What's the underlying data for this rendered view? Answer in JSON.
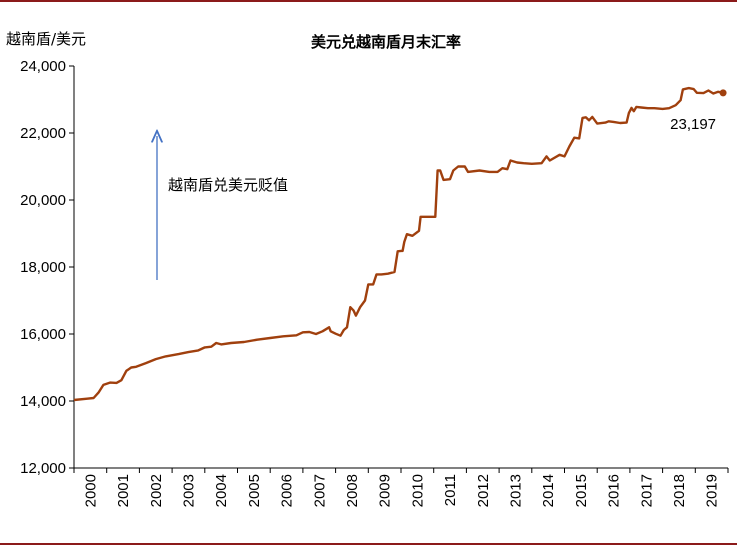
{
  "chart_data": {
    "type": "line",
    "title": "美元兑越南盾月末汇率",
    "ylabel": "越南盾/美元",
    "xlabel": "",
    "ylim": [
      12000,
      24000
    ],
    "yticks": [
      12000,
      14000,
      16000,
      18000,
      20000,
      22000,
      24000
    ],
    "ytick_labels": [
      "12,000",
      "14,000",
      "16,000",
      "18,000",
      "20,000",
      "22,000",
      "24,000"
    ],
    "xlim": [
      2000,
      2020
    ],
    "xticks": [
      2000,
      2001,
      2002,
      2003,
      2004,
      2005,
      2006,
      2007,
      2008,
      2009,
      2010,
      2011,
      2012,
      2013,
      2014,
      2015,
      2016,
      2017,
      2018,
      2019
    ],
    "xtick_labels": [
      "2000",
      "2001",
      "2002",
      "2003",
      "2004",
      "2005",
      "2006",
      "2007",
      "2008",
      "2009",
      "2010",
      "2011",
      "2012",
      "2013",
      "2014",
      "2015",
      "2016",
      "2017",
      "2018",
      "2019"
    ],
    "grid": false,
    "series": [
      {
        "color": "#a0400e",
        "points": [
          [
            2000.0,
            14030
          ],
          [
            2000.4,
            14070
          ],
          [
            2000.6,
            14090
          ],
          [
            2000.75,
            14250
          ],
          [
            2000.9,
            14480
          ],
          [
            2001.1,
            14550
          ],
          [
            2001.3,
            14540
          ],
          [
            2001.45,
            14620
          ],
          [
            2001.6,
            14900
          ],
          [
            2001.75,
            15000
          ],
          [
            2001.9,
            15020
          ],
          [
            2002.2,
            15130
          ],
          [
            2002.5,
            15250
          ],
          [
            2002.8,
            15330
          ],
          [
            2003.2,
            15400
          ],
          [
            2003.5,
            15460
          ],
          [
            2003.8,
            15510
          ],
          [
            2004.0,
            15600
          ],
          [
            2004.2,
            15620
          ],
          [
            2004.35,
            15730
          ],
          [
            2004.5,
            15690
          ],
          [
            2004.8,
            15730
          ],
          [
            2005.2,
            15760
          ],
          [
            2005.6,
            15830
          ],
          [
            2006.0,
            15880
          ],
          [
            2006.4,
            15930
          ],
          [
            2006.8,
            15960
          ],
          [
            2007.0,
            16050
          ],
          [
            2007.2,
            16060
          ],
          [
            2007.4,
            16000
          ],
          [
            2007.6,
            16080
          ],
          [
            2007.8,
            16200
          ],
          [
            2007.85,
            16080
          ],
          [
            2008.0,
            16010
          ],
          [
            2008.15,
            15950
          ],
          [
            2008.25,
            16120
          ],
          [
            2008.35,
            16200
          ],
          [
            2008.45,
            16800
          ],
          [
            2008.55,
            16700
          ],
          [
            2008.62,
            16550
          ],
          [
            2008.75,
            16800
          ],
          [
            2008.9,
            17000
          ],
          [
            2009.0,
            17480
          ],
          [
            2009.15,
            17480
          ],
          [
            2009.25,
            17780
          ],
          [
            2009.4,
            17780
          ],
          [
            2009.6,
            17800
          ],
          [
            2009.8,
            17850
          ],
          [
            2009.9,
            18470
          ],
          [
            2010.0,
            18480
          ],
          [
            2010.05,
            18480
          ],
          [
            2010.1,
            18750
          ],
          [
            2010.18,
            18980
          ],
          [
            2010.35,
            18930
          ],
          [
            2010.55,
            19080
          ],
          [
            2010.6,
            19500
          ],
          [
            2010.75,
            19500
          ],
          [
            2010.9,
            19500
          ],
          [
            2011.05,
            19500
          ],
          [
            2011.12,
            20880
          ],
          [
            2011.2,
            20880
          ],
          [
            2011.3,
            20600
          ],
          [
            2011.5,
            20620
          ],
          [
            2011.6,
            20880
          ],
          [
            2011.75,
            21000
          ],
          [
            2011.95,
            21000
          ],
          [
            2012.05,
            20840
          ],
          [
            2012.4,
            20880
          ],
          [
            2012.7,
            20840
          ],
          [
            2012.95,
            20840
          ],
          [
            2013.1,
            20950
          ],
          [
            2013.25,
            20920
          ],
          [
            2013.35,
            21180
          ],
          [
            2013.55,
            21120
          ],
          [
            2013.75,
            21100
          ],
          [
            2014.0,
            21080
          ],
          [
            2014.3,
            21100
          ],
          [
            2014.45,
            21300
          ],
          [
            2014.55,
            21180
          ],
          [
            2014.85,
            21350
          ],
          [
            2015.0,
            21300
          ],
          [
            2015.15,
            21600
          ],
          [
            2015.3,
            21860
          ],
          [
            2015.45,
            21840
          ],
          [
            2015.55,
            22450
          ],
          [
            2015.65,
            22470
          ],
          [
            2015.75,
            22380
          ],
          [
            2015.85,
            22480
          ],
          [
            2016.0,
            22280
          ],
          [
            2016.25,
            22310
          ],
          [
            2016.35,
            22350
          ],
          [
            2016.5,
            22330
          ],
          [
            2016.7,
            22300
          ],
          [
            2016.9,
            22310
          ],
          [
            2016.97,
            22600
          ],
          [
            2017.05,
            22750
          ],
          [
            2017.12,
            22650
          ],
          [
            2017.2,
            22780
          ],
          [
            2017.35,
            22760
          ],
          [
            2017.55,
            22740
          ],
          [
            2017.75,
            22740
          ],
          [
            2018.0,
            22720
          ],
          [
            2018.2,
            22740
          ],
          [
            2018.4,
            22830
          ],
          [
            2018.55,
            22980
          ],
          [
            2018.62,
            23300
          ],
          [
            2018.8,
            23340
          ],
          [
            2018.95,
            23310
          ],
          [
            2019.05,
            23200
          ],
          [
            2019.25,
            23190
          ],
          [
            2019.4,
            23270
          ],
          [
            2019.55,
            23180
          ],
          [
            2019.7,
            23230
          ],
          [
            2019.85,
            23197
          ]
        ]
      }
    ],
    "annotations": {
      "arrow_label": "越南盾兑美元贬值",
      "end_value_label": "23,197",
      "end_point": [
        2019.85,
        23197
      ]
    }
  }
}
